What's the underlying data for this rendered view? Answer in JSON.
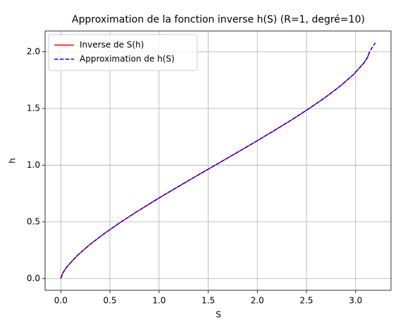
{
  "chart_data": {
    "type": "line",
    "title": "Approximation de la fonction inverse h(S) (R=1, degré=10)",
    "x_label": "S",
    "y_label": "h",
    "xlim": [
      -0.16,
      3.36
    ],
    "ylim": [
      -0.104,
      2.184
    ],
    "xticks": [
      {
        "value": 0,
        "label": "0.0"
      },
      {
        "value": 0.5,
        "label": "0.5"
      },
      {
        "value": 1,
        "label": "1.0"
      },
      {
        "value": 1.5,
        "label": "1.5"
      },
      {
        "value": 2,
        "label": "2.0"
      },
      {
        "value": 2.5,
        "label": "2.5"
      },
      {
        "value": 3,
        "label": "3.0"
      }
    ],
    "yticks": [
      {
        "value": 0,
        "label": "0.0"
      },
      {
        "value": 0.5,
        "label": "0.5"
      },
      {
        "value": 1,
        "label": "1.0"
      },
      {
        "value": 1.5,
        "label": "1.5"
      },
      {
        "value": 2,
        "label": "2.0"
      }
    ],
    "grid": true,
    "legend": "upper-left",
    "series": [
      {
        "name": "Inverse de S(h)",
        "color": "#ff0000",
        "dash": false,
        "x": [
          0,
          0.021,
          0.0587,
          0.1635,
          0.2955,
          0.4473,
          0.6142,
          0.7927,
          0.9799,
          1.1734,
          1.3711,
          1.5708,
          1.7705,
          1.9682,
          2.1617,
          2.3489,
          2.5274,
          2.6943,
          2.8461,
          2.9781,
          3.0829,
          3.1206,
          3.1416
        ],
        "values": [
          0,
          0.05,
          0.1,
          0.2,
          0.3,
          0.4,
          0.5,
          0.6,
          0.7,
          0.8,
          0.9,
          1.0,
          1.1,
          1.2,
          1.3,
          1.4,
          1.5,
          1.6,
          1.7,
          1.8,
          1.9,
          1.95,
          2.0
        ]
      },
      {
        "name": "Approximation de h(S)",
        "color": "#0000ff",
        "dash": true,
        "x": [
          0,
          0.021,
          0.0587,
          0.1635,
          0.2955,
          0.4473,
          0.6142,
          0.7927,
          0.9799,
          1.1734,
          1.3711,
          1.5708,
          1.7705,
          1.9682,
          2.1617,
          2.3489,
          2.5274,
          2.6943,
          2.8461,
          2.9781,
          3.0829,
          3.1206,
          3.1416,
          3.17,
          3.2
        ],
        "values": [
          0,
          0.05,
          0.1,
          0.2,
          0.3,
          0.4,
          0.5,
          0.6,
          0.7,
          0.8,
          0.9,
          1.0,
          1.1,
          1.2,
          1.3,
          1.4,
          1.5,
          1.6,
          1.7,
          1.8,
          1.9,
          1.95,
          2.0,
          2.04,
          2.08
        ]
      }
    ]
  }
}
